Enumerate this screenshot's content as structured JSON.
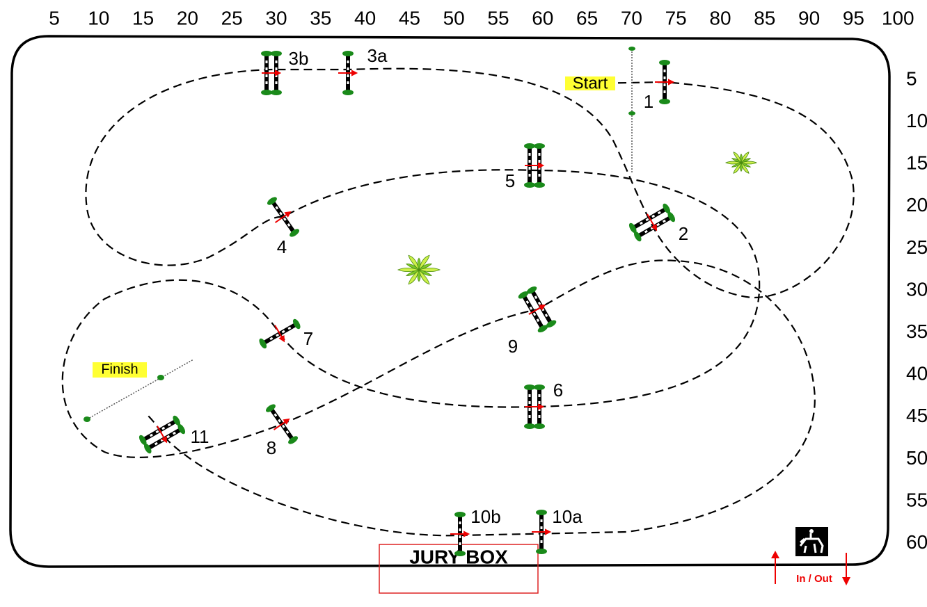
{
  "ruler": {
    "top": [
      5,
      10,
      15,
      20,
      25,
      30,
      35,
      40,
      45,
      50,
      55,
      60,
      65,
      70,
      75,
      80,
      85,
      90,
      95,
      100
    ],
    "right": [
      5,
      10,
      15,
      20,
      25,
      30,
      35,
      40,
      45,
      50,
      55,
      60
    ]
  },
  "jumps": [
    {
      "label": "1"
    },
    {
      "label": "2"
    },
    {
      "label": "3a"
    },
    {
      "label": "3b"
    },
    {
      "label": "4"
    },
    {
      "label": "5"
    },
    {
      "label": "6"
    },
    {
      "label": "7"
    },
    {
      "label": "8"
    },
    {
      "label": "9"
    },
    {
      "label": "10a"
    },
    {
      "label": "10b"
    },
    {
      "label": "11"
    }
  ],
  "start": "Start",
  "finish": "Finish",
  "jury_box": "JURY BOX",
  "in_out": "In / Out"
}
